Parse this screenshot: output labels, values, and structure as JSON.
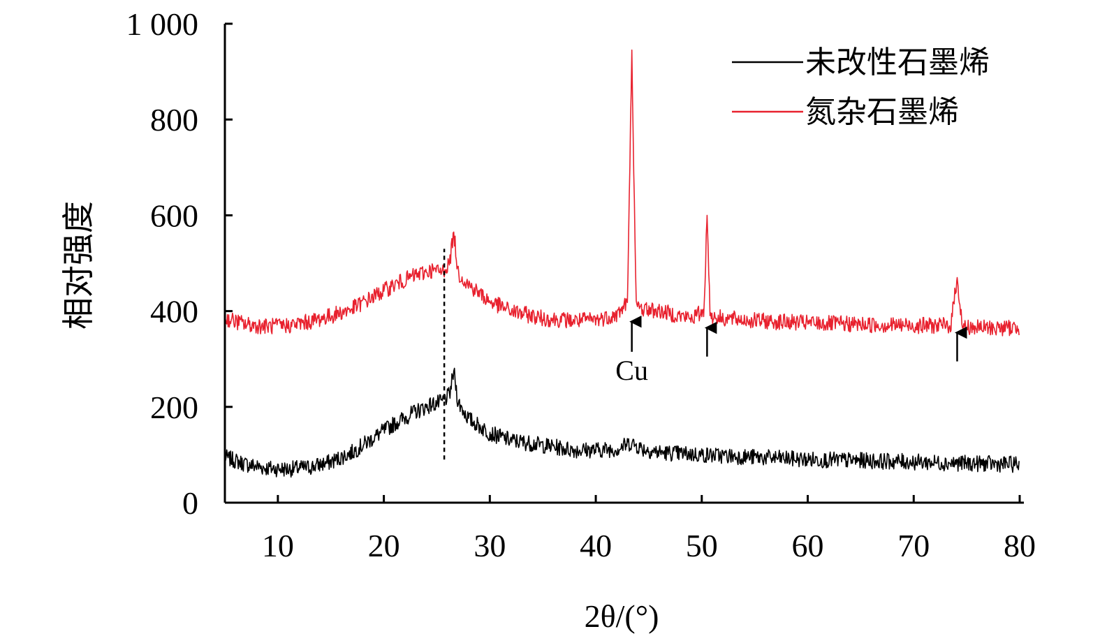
{
  "chart_data": {
    "type": "line",
    "title": "",
    "xlabel": "2θ/(°)",
    "ylabel": "相对强度",
    "xlim": [
      5,
      80
    ],
    "ylim": [
      0,
      1000
    ],
    "x_ticks": [
      10,
      20,
      30,
      40,
      50,
      60,
      70,
      80
    ],
    "x_tick_labels": [
      "10",
      "20",
      "30",
      "40",
      "50",
      "60",
      "70",
      "80"
    ],
    "y_ticks": [
      0,
      200,
      400,
      600,
      800,
      1000
    ],
    "y_tick_labels": [
      "0",
      "200",
      "400",
      "600",
      "800",
      "1 000"
    ],
    "grid": false,
    "legend_position": "top-right",
    "series": [
      {
        "name": "未改性石墨烯",
        "color": "#000000",
        "x": [
          5,
          7,
          9,
          11,
          13,
          15,
          17,
          19,
          21,
          23,
          24.5,
          25.5,
          26.2,
          26.6,
          27.0,
          28,
          30,
          32,
          35,
          38,
          40,
          42,
          43.3,
          44.5,
          46,
          50,
          55,
          60,
          65,
          70,
          75,
          80
        ],
        "values": [
          95,
          80,
          72,
          70,
          74,
          85,
          105,
          135,
          165,
          190,
          205,
          210,
          225,
          275,
          210,
          175,
          145,
          130,
          120,
          110,
          110,
          112,
          125,
          112,
          105,
          100,
          95,
          90,
          88,
          85,
          82,
          80
        ]
      },
      {
        "name": "氮杂石墨烯",
        "color": "#e8212e",
        "x": [
          5,
          7,
          9,
          11,
          13,
          15,
          17,
          19,
          21,
          23,
          24.5,
          25.5,
          26.2,
          26.6,
          27.0,
          28,
          30,
          32,
          35,
          38,
          40,
          42,
          43.0,
          43.4,
          43.8,
          44.5,
          46,
          49,
          50.2,
          50.5,
          50.8,
          52,
          55,
          60,
          65,
          70,
          73.5,
          74.1,
          74.6,
          76,
          80
        ],
        "values": [
          385,
          372,
          368,
          370,
          378,
          390,
          405,
          430,
          455,
          475,
          485,
          482,
          500,
          565,
          480,
          455,
          420,
          400,
          385,
          380,
          382,
          392,
          420,
          945,
          410,
          405,
          400,
          385,
          400,
          600,
          390,
          385,
          380,
          375,
          372,
          370,
          370,
          470,
          368,
          365,
          365
        ]
      }
    ],
    "annotations": [
      {
        "type": "dashed-line",
        "x": 25.7,
        "y_from": 90,
        "y_to": 530
      },
      {
        "type": "arrow",
        "x": 43.4,
        "y_from": 315,
        "y_to": 378,
        "label": "Cu"
      },
      {
        "type": "arrow",
        "x": 50.5,
        "y_from": 305,
        "y_to": 365,
        "label": ""
      },
      {
        "type": "arrow",
        "x": 74.1,
        "y_from": 295,
        "y_to": 355,
        "label": ""
      }
    ]
  }
}
